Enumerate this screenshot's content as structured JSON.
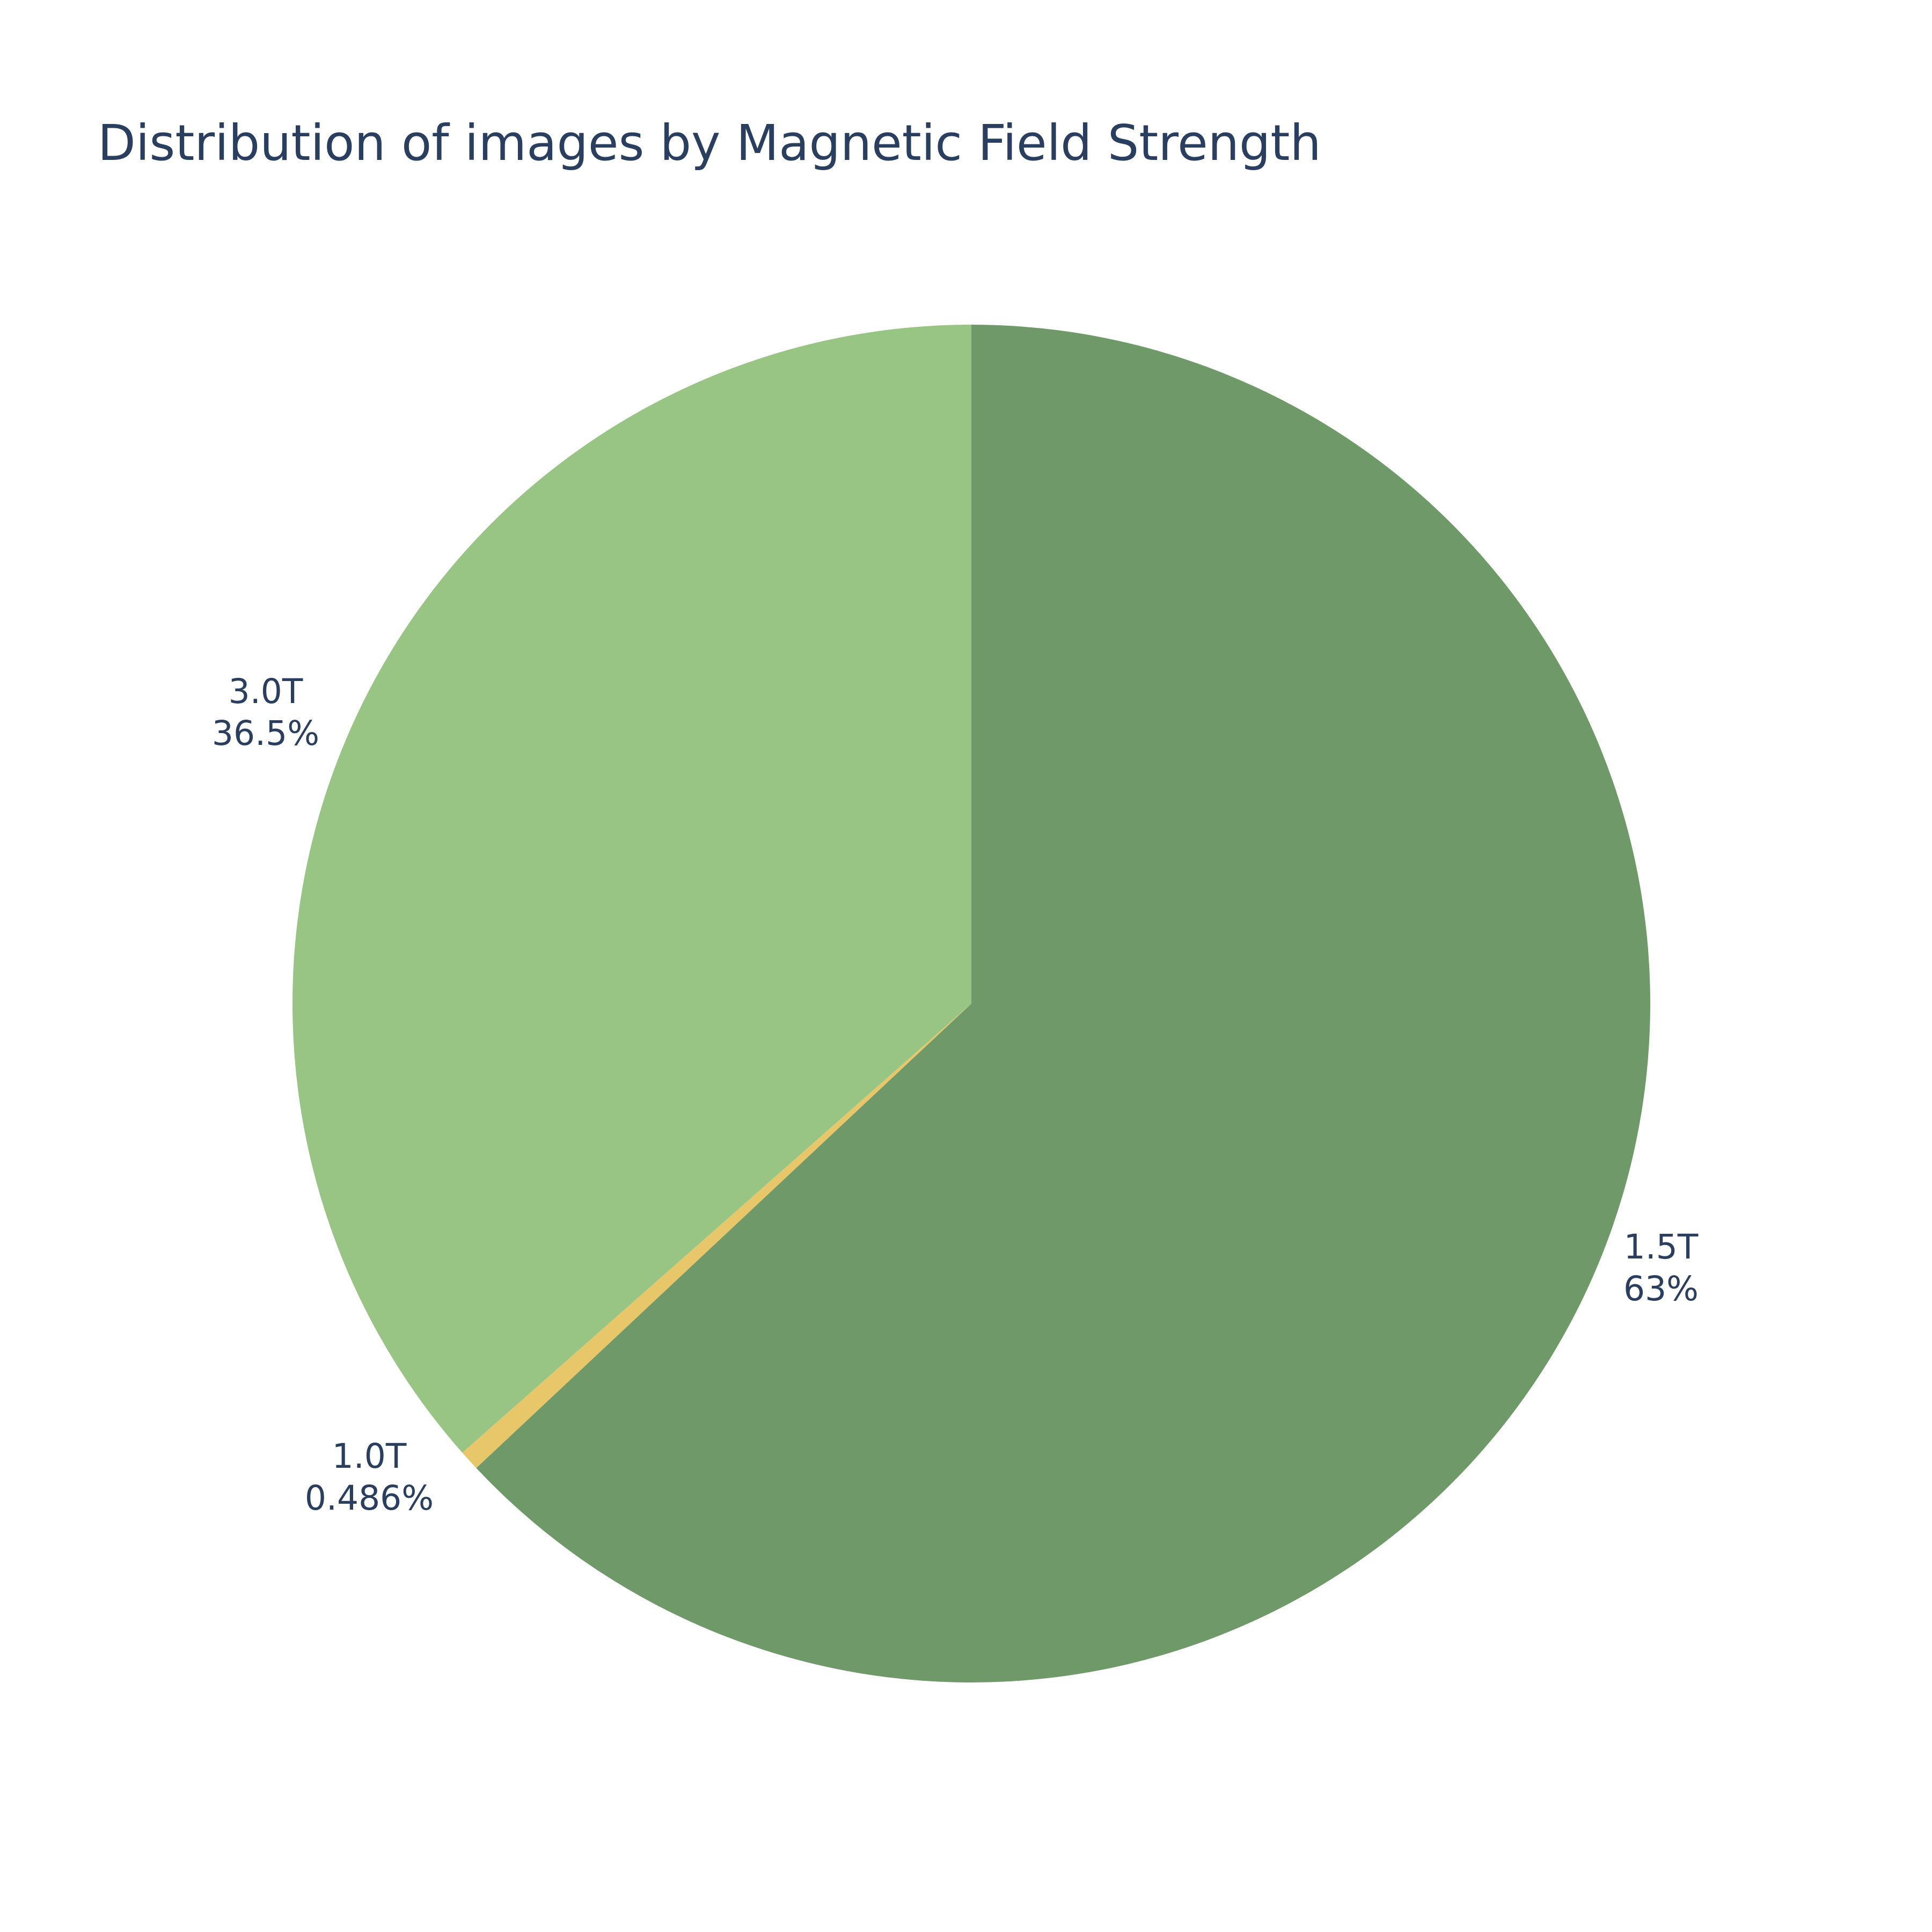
{
  "chart_data": {
    "type": "pie",
    "title": "Distribution of images by Magnetic Field Strength",
    "direction": "clockwise",
    "start": "top",
    "slices": [
      {
        "label": "1.5T",
        "percent_text": "63%",
        "value": 63.0,
        "color": "#709969"
      },
      {
        "label": "1.0T",
        "percent_text": "0.486%",
        "value": 0.486,
        "color": "#e8c66a"
      },
      {
        "label": "3.0T",
        "percent_text": "36.5%",
        "value": 36.5,
        "color": "#98c484"
      }
    ]
  }
}
